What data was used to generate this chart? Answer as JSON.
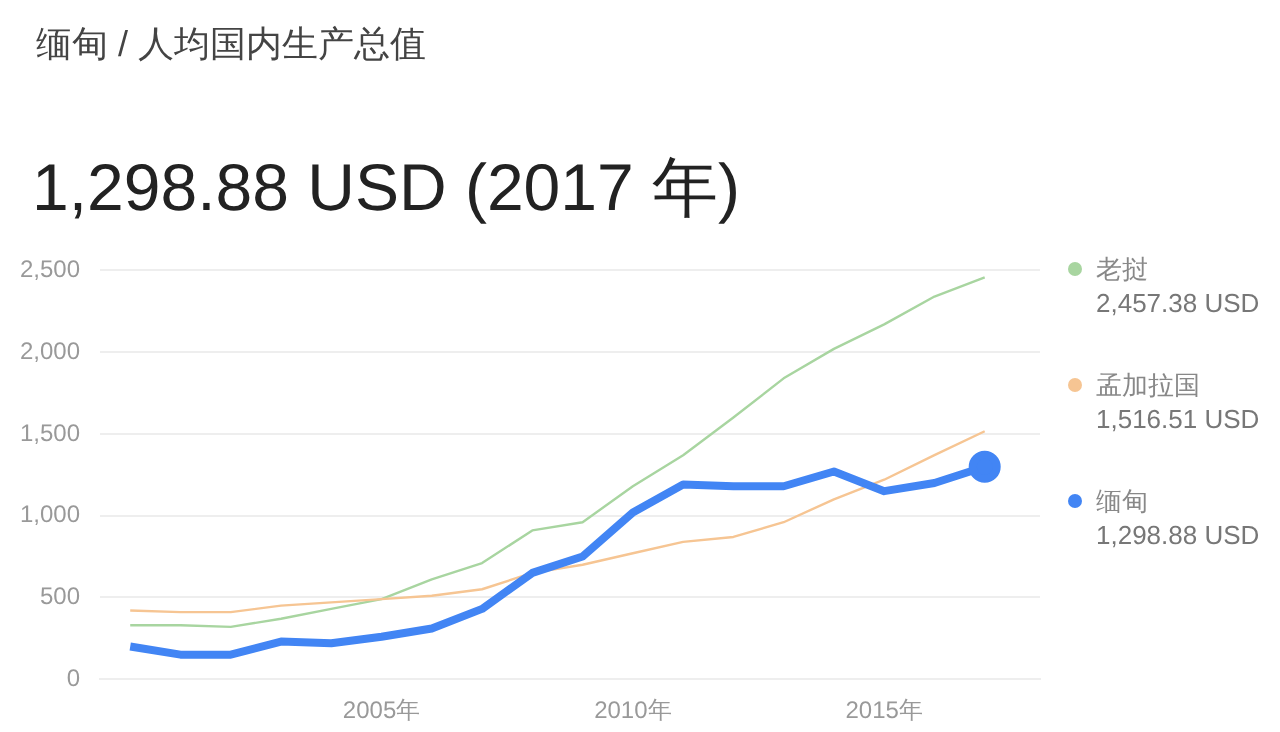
{
  "chart_data": {
    "type": "line",
    "title": "缅甸 / 人均国内生产总值",
    "subtitle": "1,298.88 USD (2017 年)",
    "x": [
      2000,
      2001,
      2002,
      2003,
      2004,
      2005,
      2006,
      2007,
      2008,
      2009,
      2010,
      2011,
      2012,
      2013,
      2014,
      2015,
      2016,
      2017
    ],
    "series": [
      {
        "name": "老挝",
        "color": "#a8d5a0",
        "values": [
          330,
          330,
          320,
          370,
          430,
          490,
          610,
          710,
          910,
          960,
          1180,
          1370,
          1600,
          1840,
          2020,
          2170,
          2340,
          2457.38
        ]
      },
      {
        "name": "孟加拉国",
        "color": "#f6c593",
        "values": [
          420,
          410,
          410,
          450,
          470,
          490,
          510,
          550,
          650,
          700,
          770,
          840,
          870,
          960,
          1100,
          1220,
          1370,
          1516.51
        ]
      },
      {
        "name": "缅甸",
        "color": "#4285f4",
        "values": [
          200,
          150,
          150,
          230,
          220,
          260,
          310,
          430,
          650,
          750,
          1020,
          1190,
          1180,
          1180,
          1270,
          1150,
          1200,
          1298.88
        ]
      }
    ],
    "annotations": [
      "2,457.38 USD",
      "1,516.51 USD",
      "1,298.88 USD"
    ],
    "xlim": [
      1999.4,
      2018.1
    ],
    "xticks": [
      {
        "value": 2005,
        "label": "2005年"
      },
      {
        "value": 2010,
        "label": "2010年"
      },
      {
        "value": 2015,
        "label": "2015年"
      }
    ],
    "ylim": [
      0,
      2500
    ],
    "yticks": [
      0,
      500,
      {
        "value": 1000,
        "label": "1,000"
      },
      {
        "value": 1500,
        "label": "1,500"
      },
      {
        "value": 2000,
        "label": "2,000"
      },
      {
        "value": 2500,
        "label": "2,500"
      }
    ],
    "grid": "y",
    "legend": "right",
    "marker": "none",
    "line_style": "solid"
  }
}
